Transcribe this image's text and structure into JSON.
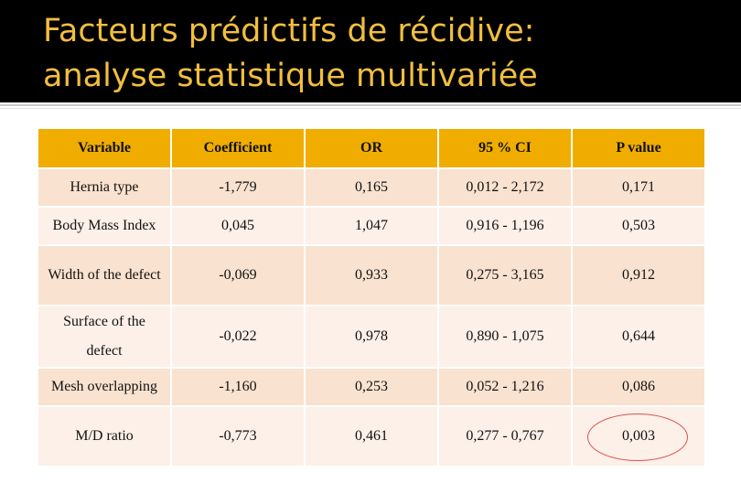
{
  "title": {
    "line1": "Facteurs prédictifs de récidive:",
    "line2": "analyse statistique multivariée"
  },
  "colors": {
    "header_bg": "#000000",
    "title_color": "#f2be3e",
    "table_header_bg": "#f0ad00",
    "row_odd_bg": "#f9e2cf",
    "row_even_bg": "#fcf0e8",
    "highlight_circle": "#d9534f"
  },
  "table": {
    "headers": [
      "Variable",
      "Coefficient",
      "OR",
      "95 % CI",
      "P value"
    ],
    "rows": [
      {
        "variable": "Hernia type",
        "coefficient": "-1,779",
        "or": "0,165",
        "ci": "0,012 - 2,172",
        "p": "0,171"
      },
      {
        "variable": "Body Mass Index",
        "coefficient": "0,045",
        "or": "1,047",
        "ci": "0,916 - 1,196",
        "p": "0,503"
      },
      {
        "variable": "Width of the defect",
        "coefficient": "-0,069",
        "or": "0,933",
        "ci": "0,275 - 3,165",
        "p": "0,912"
      },
      {
        "variable": "Surface of the defect",
        "coefficient": "-0,022",
        "or": "0,978",
        "ci": "0,890 - 1,075",
        "p": "0,644"
      },
      {
        "variable": "Mesh overlapping",
        "coefficient": "-1,160",
        "or": "0,253",
        "ci": "0,052 - 1,216",
        "p": "0,086"
      },
      {
        "variable": "M/D ratio",
        "coefficient": "-0,773",
        "or": "0,461",
        "ci": "0,277 - 0,767",
        "p": "0,003"
      }
    ]
  }
}
